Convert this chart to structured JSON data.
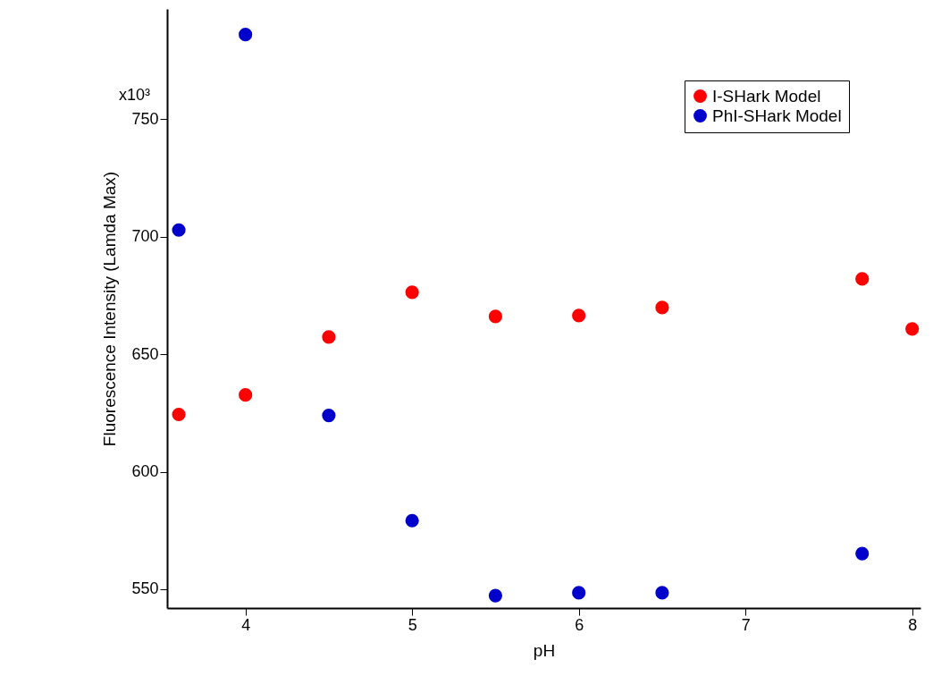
{
  "chart_data": {
    "type": "scatter",
    "xlabel": "pH",
    "ylabel": "Fluorescence Intensity (Lamda Max)",
    "xlim": [
      3.53,
      8.05
    ],
    "xticks": [
      4,
      5,
      6,
      7,
      8
    ],
    "ylim": [
      542,
      797
    ],
    "yticks": [
      550,
      600,
      650,
      700,
      750
    ],
    "annotations": [
      "x10³"
    ],
    "series": [
      {
        "name": "I-SHark Model",
        "color": "#ff0000",
        "x": [
          3.6,
          4,
          4.5,
          5,
          5.5,
          6,
          6.5,
          7.7,
          8
        ],
        "values": [
          624.4,
          632.7,
          657.4,
          676.4,
          666.1,
          666.5,
          669.9,
          682.1,
          660.8
        ]
      },
      {
        "name": "PhI-SHark Model",
        "color": "#0000cc",
        "x": [
          3.6,
          4,
          4.5,
          5,
          5.5,
          6,
          6.5,
          7.7
        ],
        "values": [
          702.9,
          786.1,
          624.0,
          579.2,
          547.3,
          548.5,
          548.5,
          565.2
        ]
      }
    ],
    "grid": false,
    "legend": "top right",
    "marker": "circle"
  }
}
